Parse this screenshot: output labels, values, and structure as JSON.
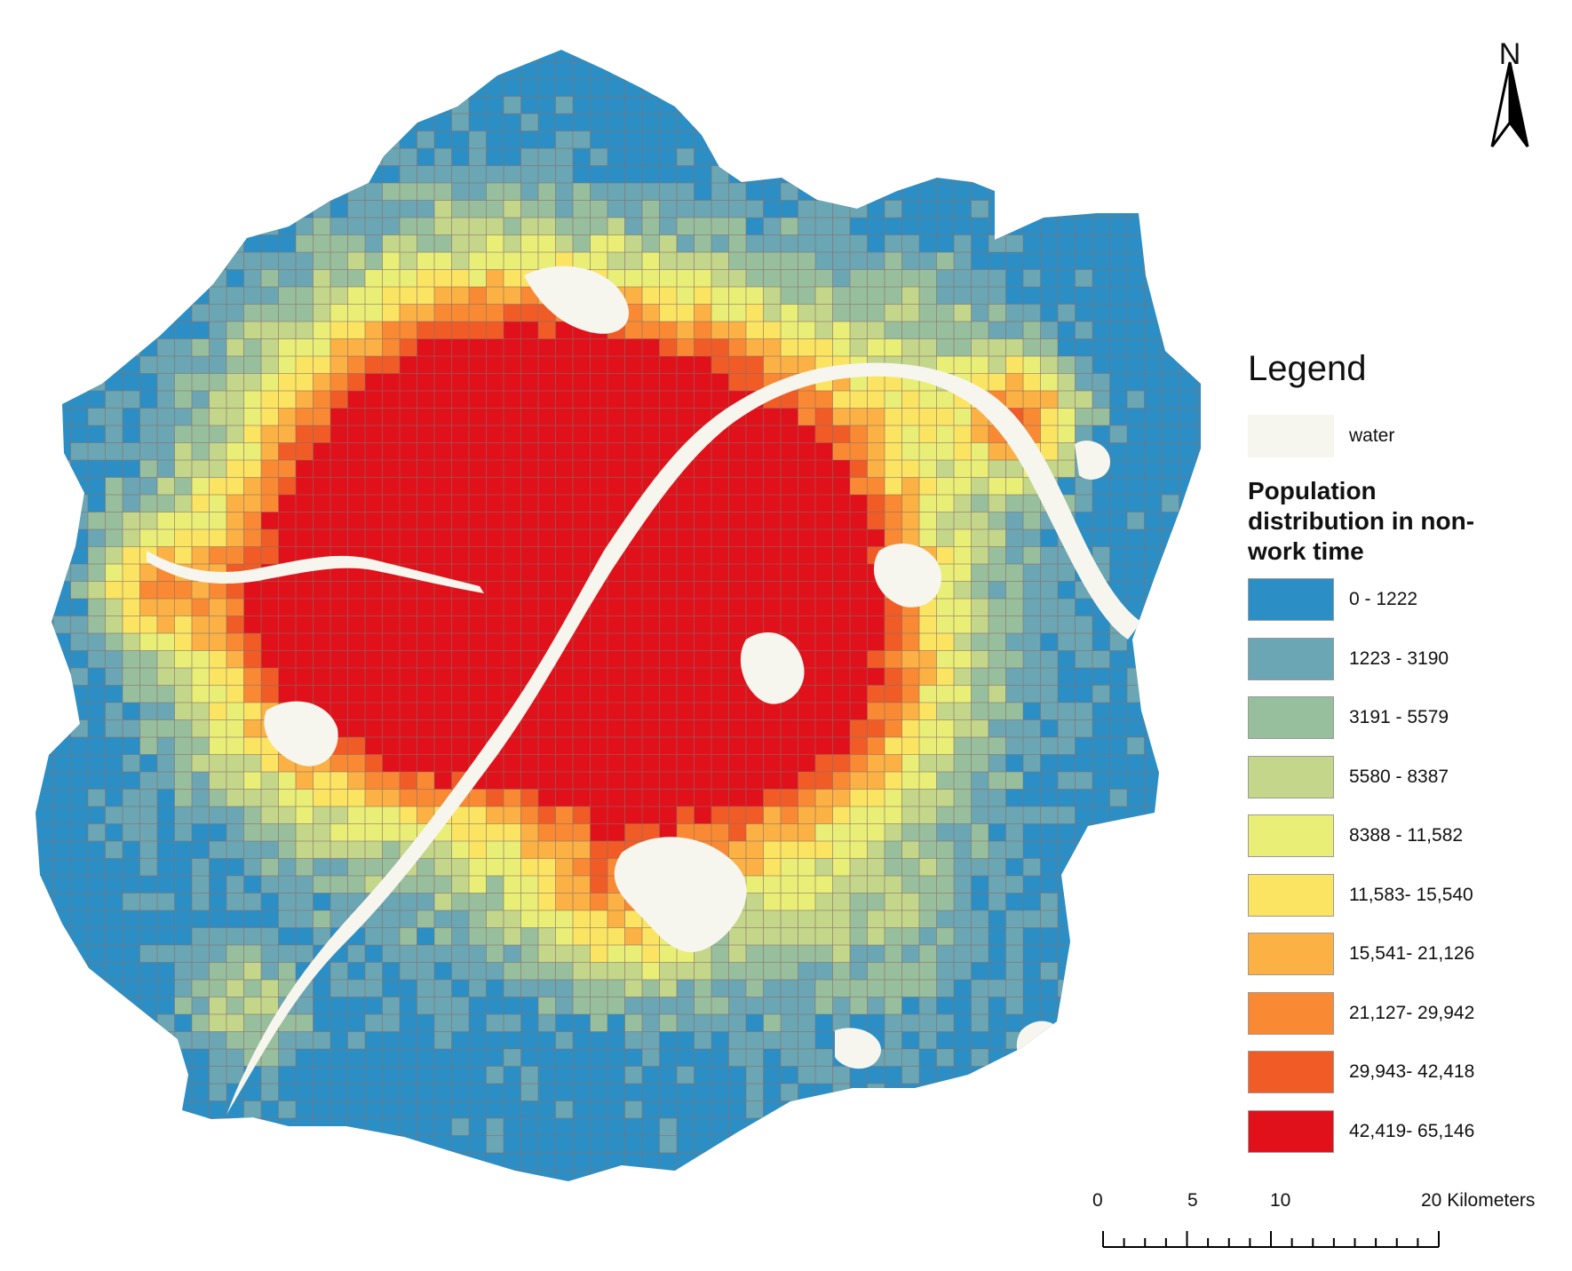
{
  "legend": {
    "title": "Legend",
    "water_label": "water",
    "water_color": "#f6f6ee",
    "classification_title": "Population distribution in non-work time",
    "classes": [
      {
        "label": "0 - 1222",
        "color": "#2b8fc6"
      },
      {
        "label": "1223 - 3190",
        "color": "#6aa6b3"
      },
      {
        "label": "3191 - 5579",
        "color": "#98bf9d"
      },
      {
        "label": "5580 - 8387",
        "color": "#c3d68a"
      },
      {
        "label": "8388 - 11,582",
        "color": "#e8ee76"
      },
      {
        "label": "11,583- 15,540",
        "color": "#fbe462"
      },
      {
        "label": "15,541- 21,126",
        "color": "#fbb144"
      },
      {
        "label": "21,127- 29,942",
        "color": "#f98a33"
      },
      {
        "label": "29,943- 42,418",
        "color": "#f15b26"
      },
      {
        "label": "42,419- 65,146",
        "color": "#e0111a"
      }
    ]
  },
  "north_arrow": {
    "label": "N",
    "icon": "north-arrow-icon"
  },
  "scale_bar": {
    "labels": [
      "0",
      "5",
      "10",
      "20 Kilometers"
    ],
    "values_km": [
      0,
      5,
      10,
      20
    ]
  },
  "map": {
    "grid_line_color": "#8a6e6a",
    "river_color": "#f6f6ee"
  }
}
